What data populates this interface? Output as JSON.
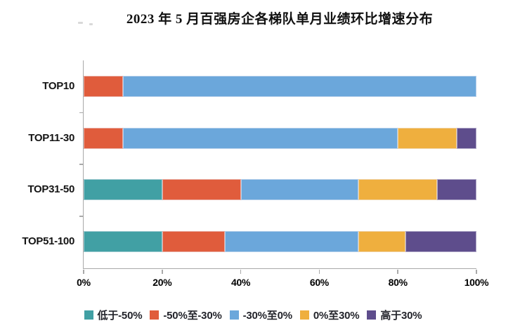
{
  "page": {
    "background": "#ffffff"
  },
  "chart_data": {
    "type": "bar",
    "orientation": "horizontal",
    "stacked": true,
    "title": "2023 年 5 月百强房企各梯队单月业绩环比增速分布",
    "categories": [
      "TOP10",
      "TOP11-30",
      "TOP31-50",
      "TOP51-100"
    ],
    "series": [
      {
        "name": "低于-50%",
        "color": "#41A0A4",
        "values": [
          0,
          0,
          20,
          20
        ]
      },
      {
        "name": "-50%至-30%",
        "color": "#E05C3C",
        "values": [
          10,
          10,
          20,
          16
        ]
      },
      {
        "name": "-30%至0%",
        "color": "#6BA7DB",
        "values": [
          90,
          70,
          30,
          34
        ]
      },
      {
        "name": "0%至30%",
        "color": "#EFAF3E",
        "values": [
          0,
          15,
          20,
          12
        ]
      },
      {
        "name": "高于30%",
        "color": "#5E4D8C",
        "values": [
          0,
          5,
          10,
          18
        ]
      }
    ],
    "x_ticks": [
      "0%",
      "20%",
      "40%",
      "60%",
      "80%",
      "100%"
    ],
    "xlim": [
      0,
      100
    ],
    "grid": false,
    "legend_position": "bottom",
    "axis_color": "#a9a9a9"
  }
}
